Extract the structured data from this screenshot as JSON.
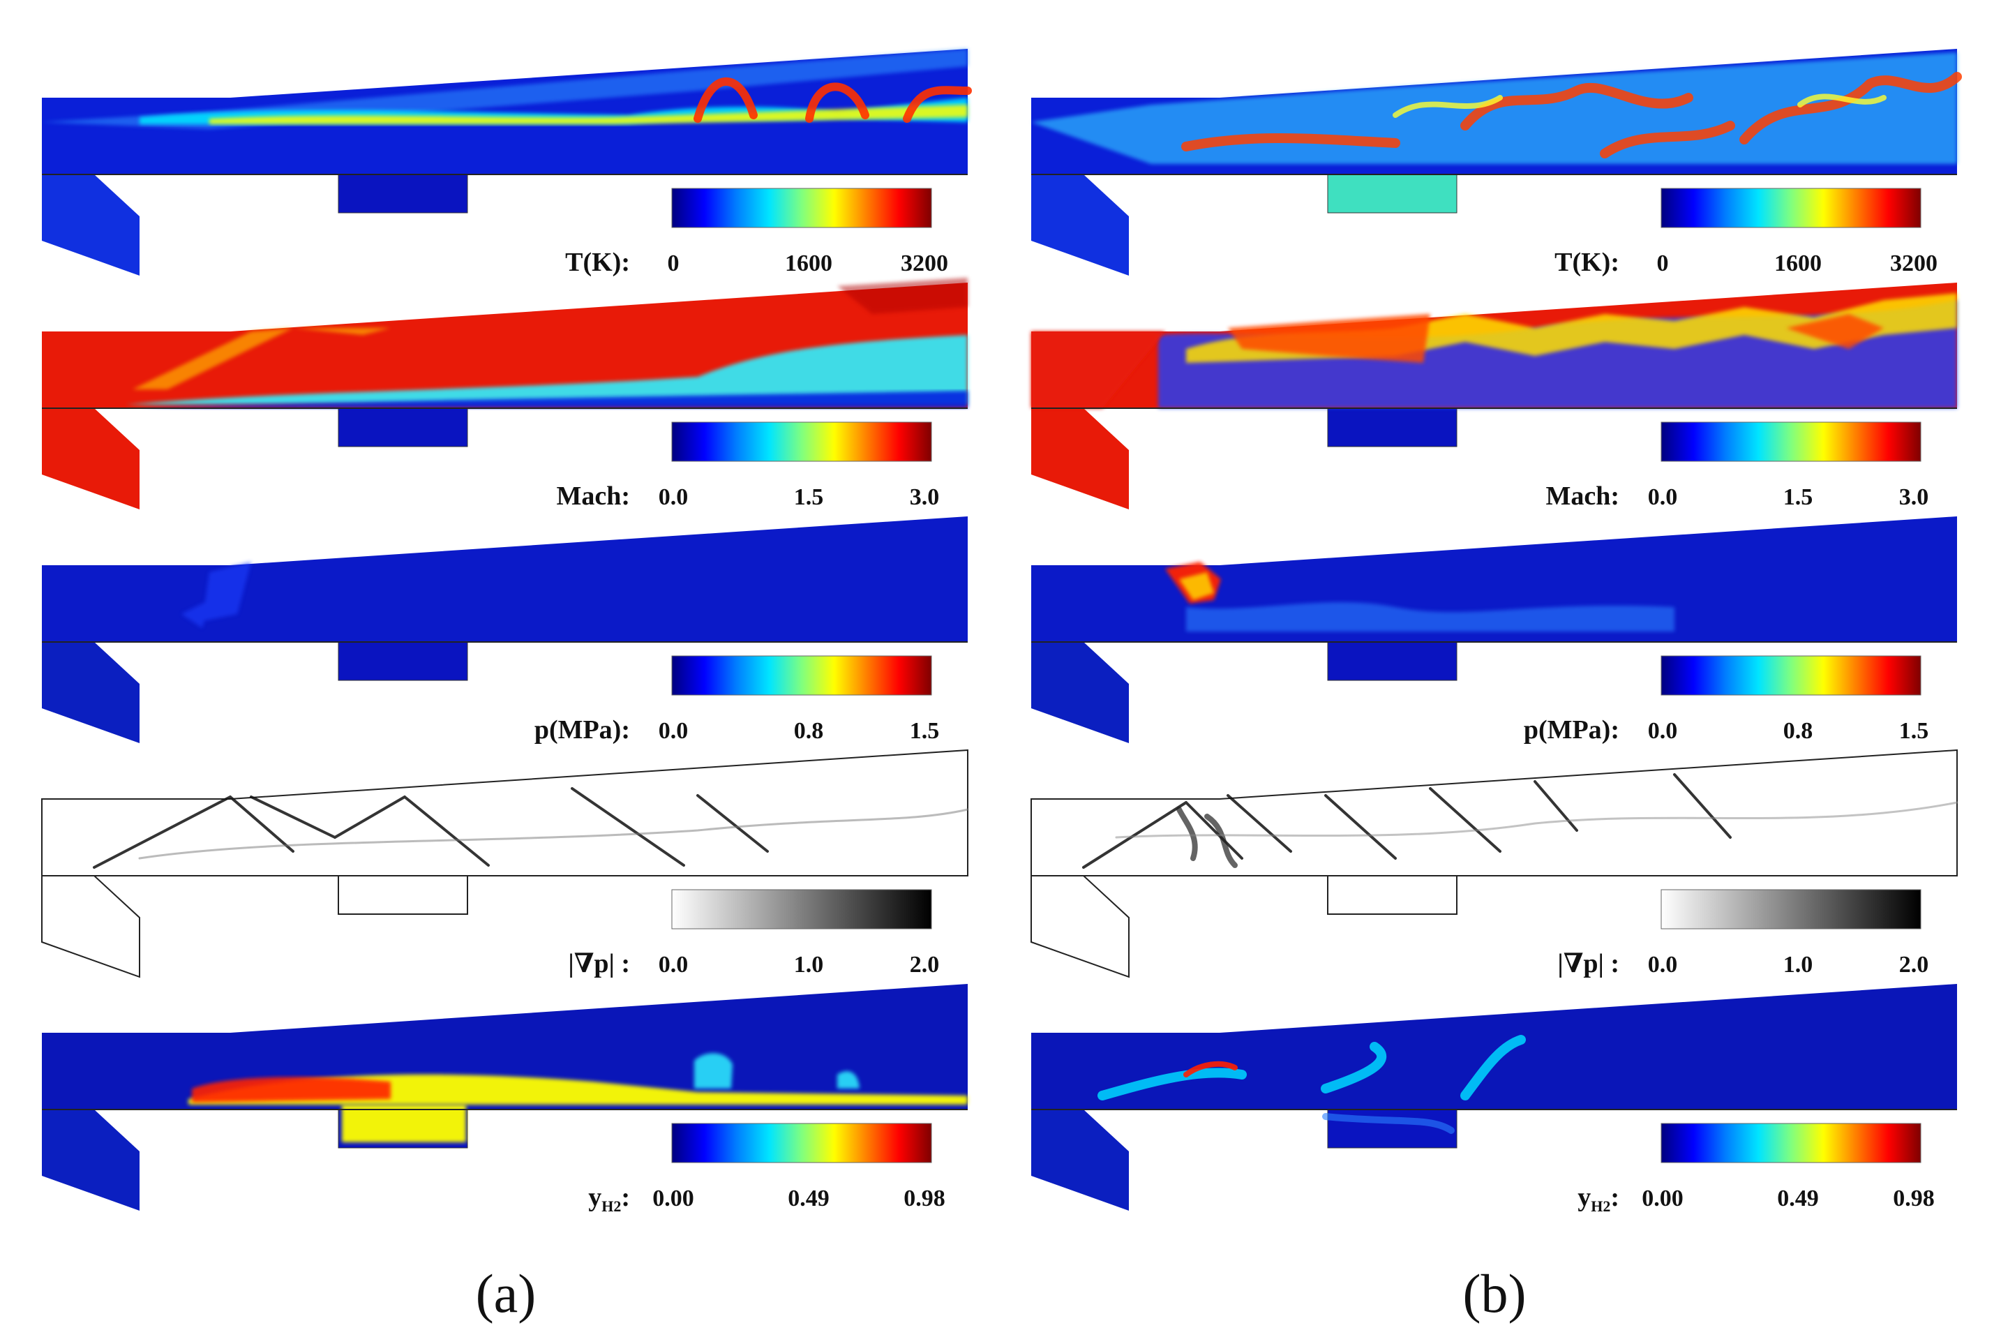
{
  "panel_labels": [
    "(a)",
    "(b)"
  ],
  "colormaps": {
    "jet": [
      "#00007f",
      "#0000ff",
      "#007fff",
      "#00e5ff",
      "#7fff7f",
      "#ffff00",
      "#ff7f00",
      "#ff0000",
      "#7f0000"
    ],
    "gray": [
      "#ffffff",
      "#000000"
    ]
  },
  "fields": [
    {
      "id": "temperature",
      "label": "T(K):",
      "ticks": [
        "0",
        "1600",
        "3200"
      ],
      "colormap": "jet",
      "base_color": "#0a1fd8"
    },
    {
      "id": "mach",
      "label": "Mach:",
      "ticks": [
        "0.0",
        "1.5",
        "3.0"
      ],
      "colormap": "jet",
      "base_color": "#e81a08"
    },
    {
      "id": "pressure",
      "label": "p(MPa):",
      "ticks": [
        "0.0",
        "0.8",
        "1.5"
      ],
      "colormap": "jet",
      "base_color": "#0b1ac8"
    },
    {
      "id": "pressure-gradient",
      "label": ":",
      "label_symbol": "|∇p|",
      "ticks": [
        "0.0",
        "1.0",
        "2.0"
      ],
      "colormap": "gray",
      "base_color": "#ffffff"
    },
    {
      "id": "hydrogen-fraction",
      "label": "y",
      "label_sub": "H2",
      "label_suffix": ":",
      "ticks": [
        "0.00",
        "0.49",
        "0.98"
      ],
      "colormap": "jet",
      "base_color": "#0a16b8"
    }
  ]
}
